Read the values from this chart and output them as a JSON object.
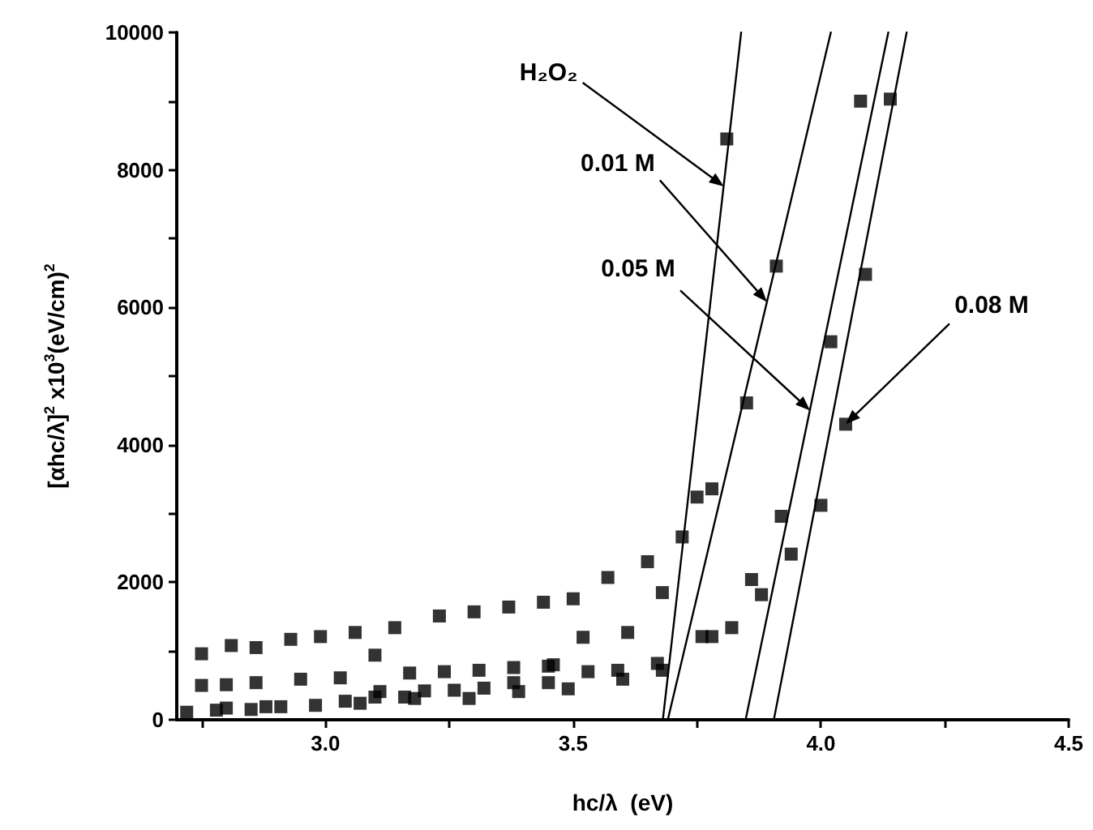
{
  "chart_data": {
    "type": "scatter",
    "xlabel": "hc/λ  (eV)",
    "ylabel": "[αhc/λ]$^{2}$ x10$^{3}$(eV/cm)$^{2}$",
    "xlim": [
      2.7,
      4.5
    ],
    "xticks": [
      {
        "value": 2.75,
        "label": null
      },
      {
        "value": 3,
        "label": "3.0"
      },
      {
        "value": 3.25,
        "label": null
      },
      3.5,
      {
        "value": 3.75,
        "label": null
      },
      {
        "value": 4,
        "label": "4.0"
      },
      {
        "value": 4.25,
        "label": null
      },
      4.5
    ],
    "ylim": [
      0,
      10000
    ],
    "yticks": [
      0,
      {
        "value": 1000,
        "label": null
      },
      2000,
      {
        "value": 3000,
        "label": null
      },
      4000,
      {
        "value": 5000,
        "label": null
      },
      6000,
      {
        "value": 7000,
        "label": null
      },
      8000,
      {
        "value": 9000,
        "label": null
      },
      10000
    ],
    "marker": "square",
    "series": [
      {
        "type": "scatter",
        "color": "#000000",
        "x": [
          2.72,
          2.78,
          2.8,
          2.85,
          2.88,
          2.91,
          2.98,
          3.04,
          3.07,
          3.1,
          3.11,
          3.16,
          3.18,
          3.2,
          3.26,
          3.29,
          3.32,
          3.39,
          3.38,
          2.75,
          2.8,
          2.86,
          2.95,
          3.03,
          3.1,
          3.17,
          3.24,
          3.31,
          3.38,
          3.45,
          3.45,
          2.75,
          2.81,
          2.86,
          2.93,
          2.99,
          3.06,
          3.14,
          3.23,
          3.3,
          3.37,
          3.44,
          3.5,
          3.52,
          3.49,
          3.57,
          3.65,
          3.68,
          3.75,
          3.78,
          3.72,
          3.61,
          3.76,
          3.78,
          3.82,
          3.86,
          3.88,
          3.92,
          3.94,
          4.0,
          4.05,
          3.46,
          3.53,
          3.59,
          3.6,
          3.67,
          3.68,
          3.81,
          3.91,
          3.85,
          4.02,
          4.09,
          4.08,
          4.14
        ],
        "values": [
          110,
          140,
          170,
          150,
          190,
          190,
          210,
          270,
          240,
          330,
          410,
          330,
          310,
          420,
          430,
          310,
          460,
          410,
          540,
          500,
          510,
          540,
          590,
          610,
          940,
          680,
          700,
          720,
          760,
          780,
          540,
          960,
          1080,
          1050,
          1170,
          1210,
          1270,
          1340,
          1510,
          1570,
          1640,
          1710,
          1760,
          1200,
          450,
          2070,
          2300,
          1850,
          3240,
          3360,
          2660,
          1270,
          1210,
          1210,
          1340,
          2040,
          1820,
          2960,
          2410,
          3120,
          4300,
          800,
          700,
          720,
          590,
          820,
          720,
          8450,
          6600,
          4610,
          5500,
          6480,
          9000,
          9030
        ]
      },
      {
        "type": "line",
        "color": "#000000",
        "marker": "none",
        "x": [
          3.681,
          3.839
        ],
        "values": [
          0,
          10000
        ]
      },
      {
        "type": "line",
        "color": "#000000",
        "marker": "none",
        "x": [
          3.691,
          4.02
        ],
        "values": [
          0,
          10000
        ]
      },
      {
        "type": "line",
        "color": "#000000",
        "marker": "none",
        "x": [
          3.848,
          4.136
        ],
        "values": [
          0,
          10000
        ]
      },
      {
        "type": "line",
        "color": "#000000",
        "marker": "none",
        "x": [
          3.905,
          4.173
        ],
        "values": [
          0,
          10000
        ]
      }
    ],
    "annotations": [
      {
        "text": "H₂O₂",
        "x": 3.804,
        "y": 7760
      },
      {
        "text": "0.01 M",
        "x": 3.891,
        "y": 6080
      },
      {
        "text": "0.05 M",
        "x": 3.978,
        "y": 4500
      },
      {
        "text": "0.08 M",
        "x": 4.05,
        "y": 4300
      }
    ]
  }
}
